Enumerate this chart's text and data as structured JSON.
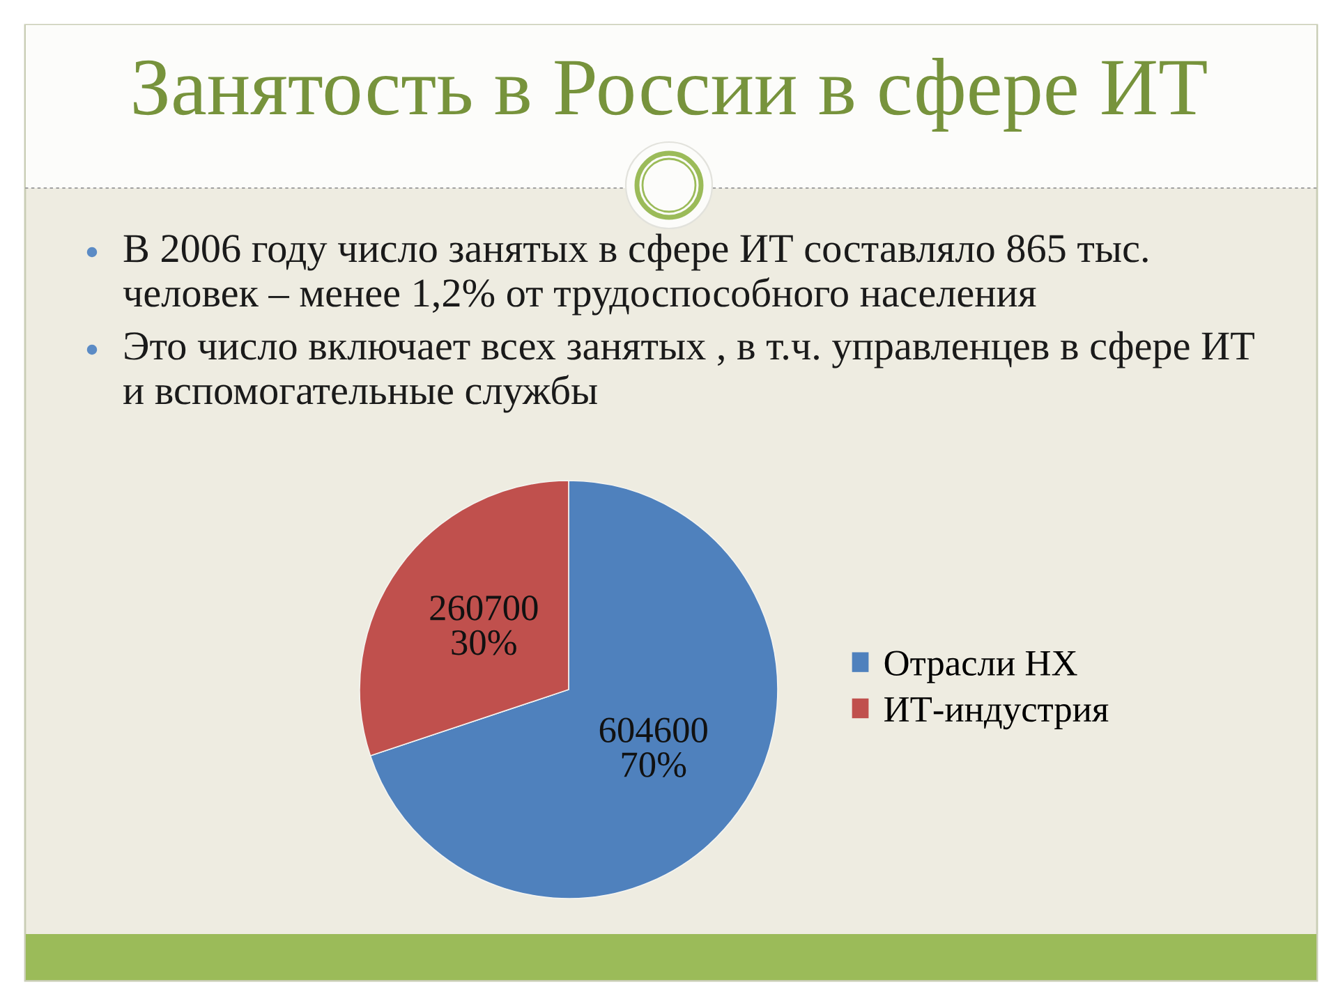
{
  "chart_data": {
    "type": "pie",
    "title": "Занятость в России в сфере ИТ",
    "annotations": [
      "В 2006 году число занятых в сфере ИТ составляло 865 тыс. человек – менее 1,2% от трудоспособного населения",
      "Это число включает всех занятых , в т.ч. управленцев в сфере ИТ и вспомогательные службы"
    ],
    "categories": [
      "Отрасли НХ",
      "ИТ-индустрия"
    ],
    "values": [
      604600,
      260700
    ],
    "colors": [
      "#4f81bd",
      "#c0504d"
    ],
    "value_labels": [
      "604600\n70%",
      "260700\n30%"
    ],
    "legend": "right"
  }
}
